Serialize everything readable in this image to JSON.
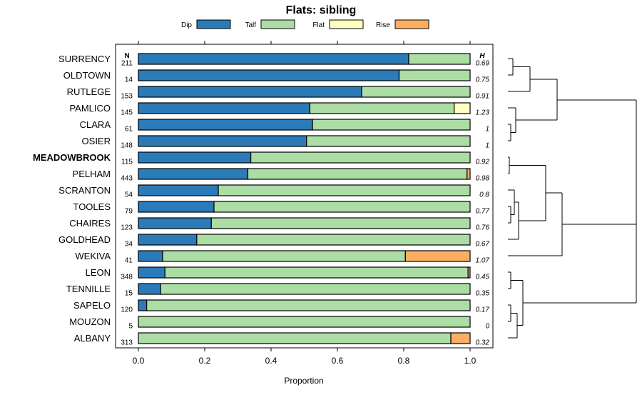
{
  "chart_data": {
    "type": "stacked-bar",
    "orientation": "horizontal",
    "title": "Flats: sibling",
    "xlabel": "Proportion",
    "xlim": [
      0,
      1
    ],
    "xticks": [
      "0.0",
      "0.2",
      "0.4",
      "0.6",
      "0.8",
      "1.0"
    ],
    "n_header": "N",
    "h_header": "H",
    "highlight": "MEADOWBROOK",
    "legend": [
      {
        "name": "Dip",
        "color": "#2b7bb9"
      },
      {
        "name": "Talf",
        "color": "#abdda4"
      },
      {
        "name": "Flat",
        "color": "#ffffbf"
      },
      {
        "name": "Rise",
        "color": "#fdae61"
      }
    ],
    "rows": [
      {
        "site": "SURRENCY",
        "n": "211",
        "h": "0.69",
        "values": [
          0.815,
          0.185,
          0,
          0
        ]
      },
      {
        "site": "OLDTOWN",
        "n": "14",
        "h": "0.75",
        "values": [
          0.786,
          0.214,
          0,
          0
        ]
      },
      {
        "site": "RUTLEGE",
        "n": "153",
        "h": "0.91",
        "values": [
          0.673,
          0.327,
          0,
          0
        ]
      },
      {
        "site": "PAMLICO",
        "n": "145",
        "h": "1.23",
        "values": [
          0.517,
          0.435,
          0.048,
          0
        ]
      },
      {
        "site": "CLARA",
        "n": "61",
        "h": "1",
        "values": [
          0.525,
          0.475,
          0,
          0
        ]
      },
      {
        "site": "OSIER",
        "n": "148",
        "h": "1",
        "values": [
          0.507,
          0.493,
          0,
          0
        ]
      },
      {
        "site": "MEADOWBROOK",
        "n": "115",
        "h": "0.92",
        "values": [
          0.339,
          0.661,
          0,
          0
        ]
      },
      {
        "site": "PELHAM",
        "n": "443",
        "h": "0.98",
        "values": [
          0.33,
          0.661,
          0,
          0.009
        ]
      },
      {
        "site": "SCRANTON",
        "n": "54",
        "h": "0.8",
        "values": [
          0.241,
          0.759,
          0,
          0
        ]
      },
      {
        "site": "TOOLES",
        "n": "79",
        "h": "0.77",
        "values": [
          0.228,
          0.772,
          0,
          0
        ]
      },
      {
        "site": "CHAIRES",
        "n": "123",
        "h": "0.76",
        "values": [
          0.22,
          0.78,
          0,
          0
        ]
      },
      {
        "site": "GOLDHEAD",
        "n": "34",
        "h": "0.67",
        "values": [
          0.176,
          0.824,
          0,
          0
        ]
      },
      {
        "site": "WEKIVA",
        "n": "41",
        "h": "1.07",
        "values": [
          0.073,
          0.732,
          0,
          0.195
        ]
      },
      {
        "site": "LEON",
        "n": "348",
        "h": "0.45",
        "values": [
          0.08,
          0.914,
          0,
          0.006
        ]
      },
      {
        "site": "TENNILLE",
        "n": "15",
        "h": "0.35",
        "values": [
          0.067,
          0.933,
          0,
          0
        ]
      },
      {
        "site": "SAPELO",
        "n": "120",
        "h": "0.17",
        "values": [
          0.025,
          0.975,
          0,
          0
        ]
      },
      {
        "site": "MOUZON",
        "n": "5",
        "h": "0",
        "values": [
          0,
          1,
          0,
          0
        ]
      },
      {
        "site": "ALBANY",
        "n": "313",
        "h": "0.32",
        "values": [
          0,
          0.942,
          0,
          0.058
        ]
      }
    ]
  }
}
